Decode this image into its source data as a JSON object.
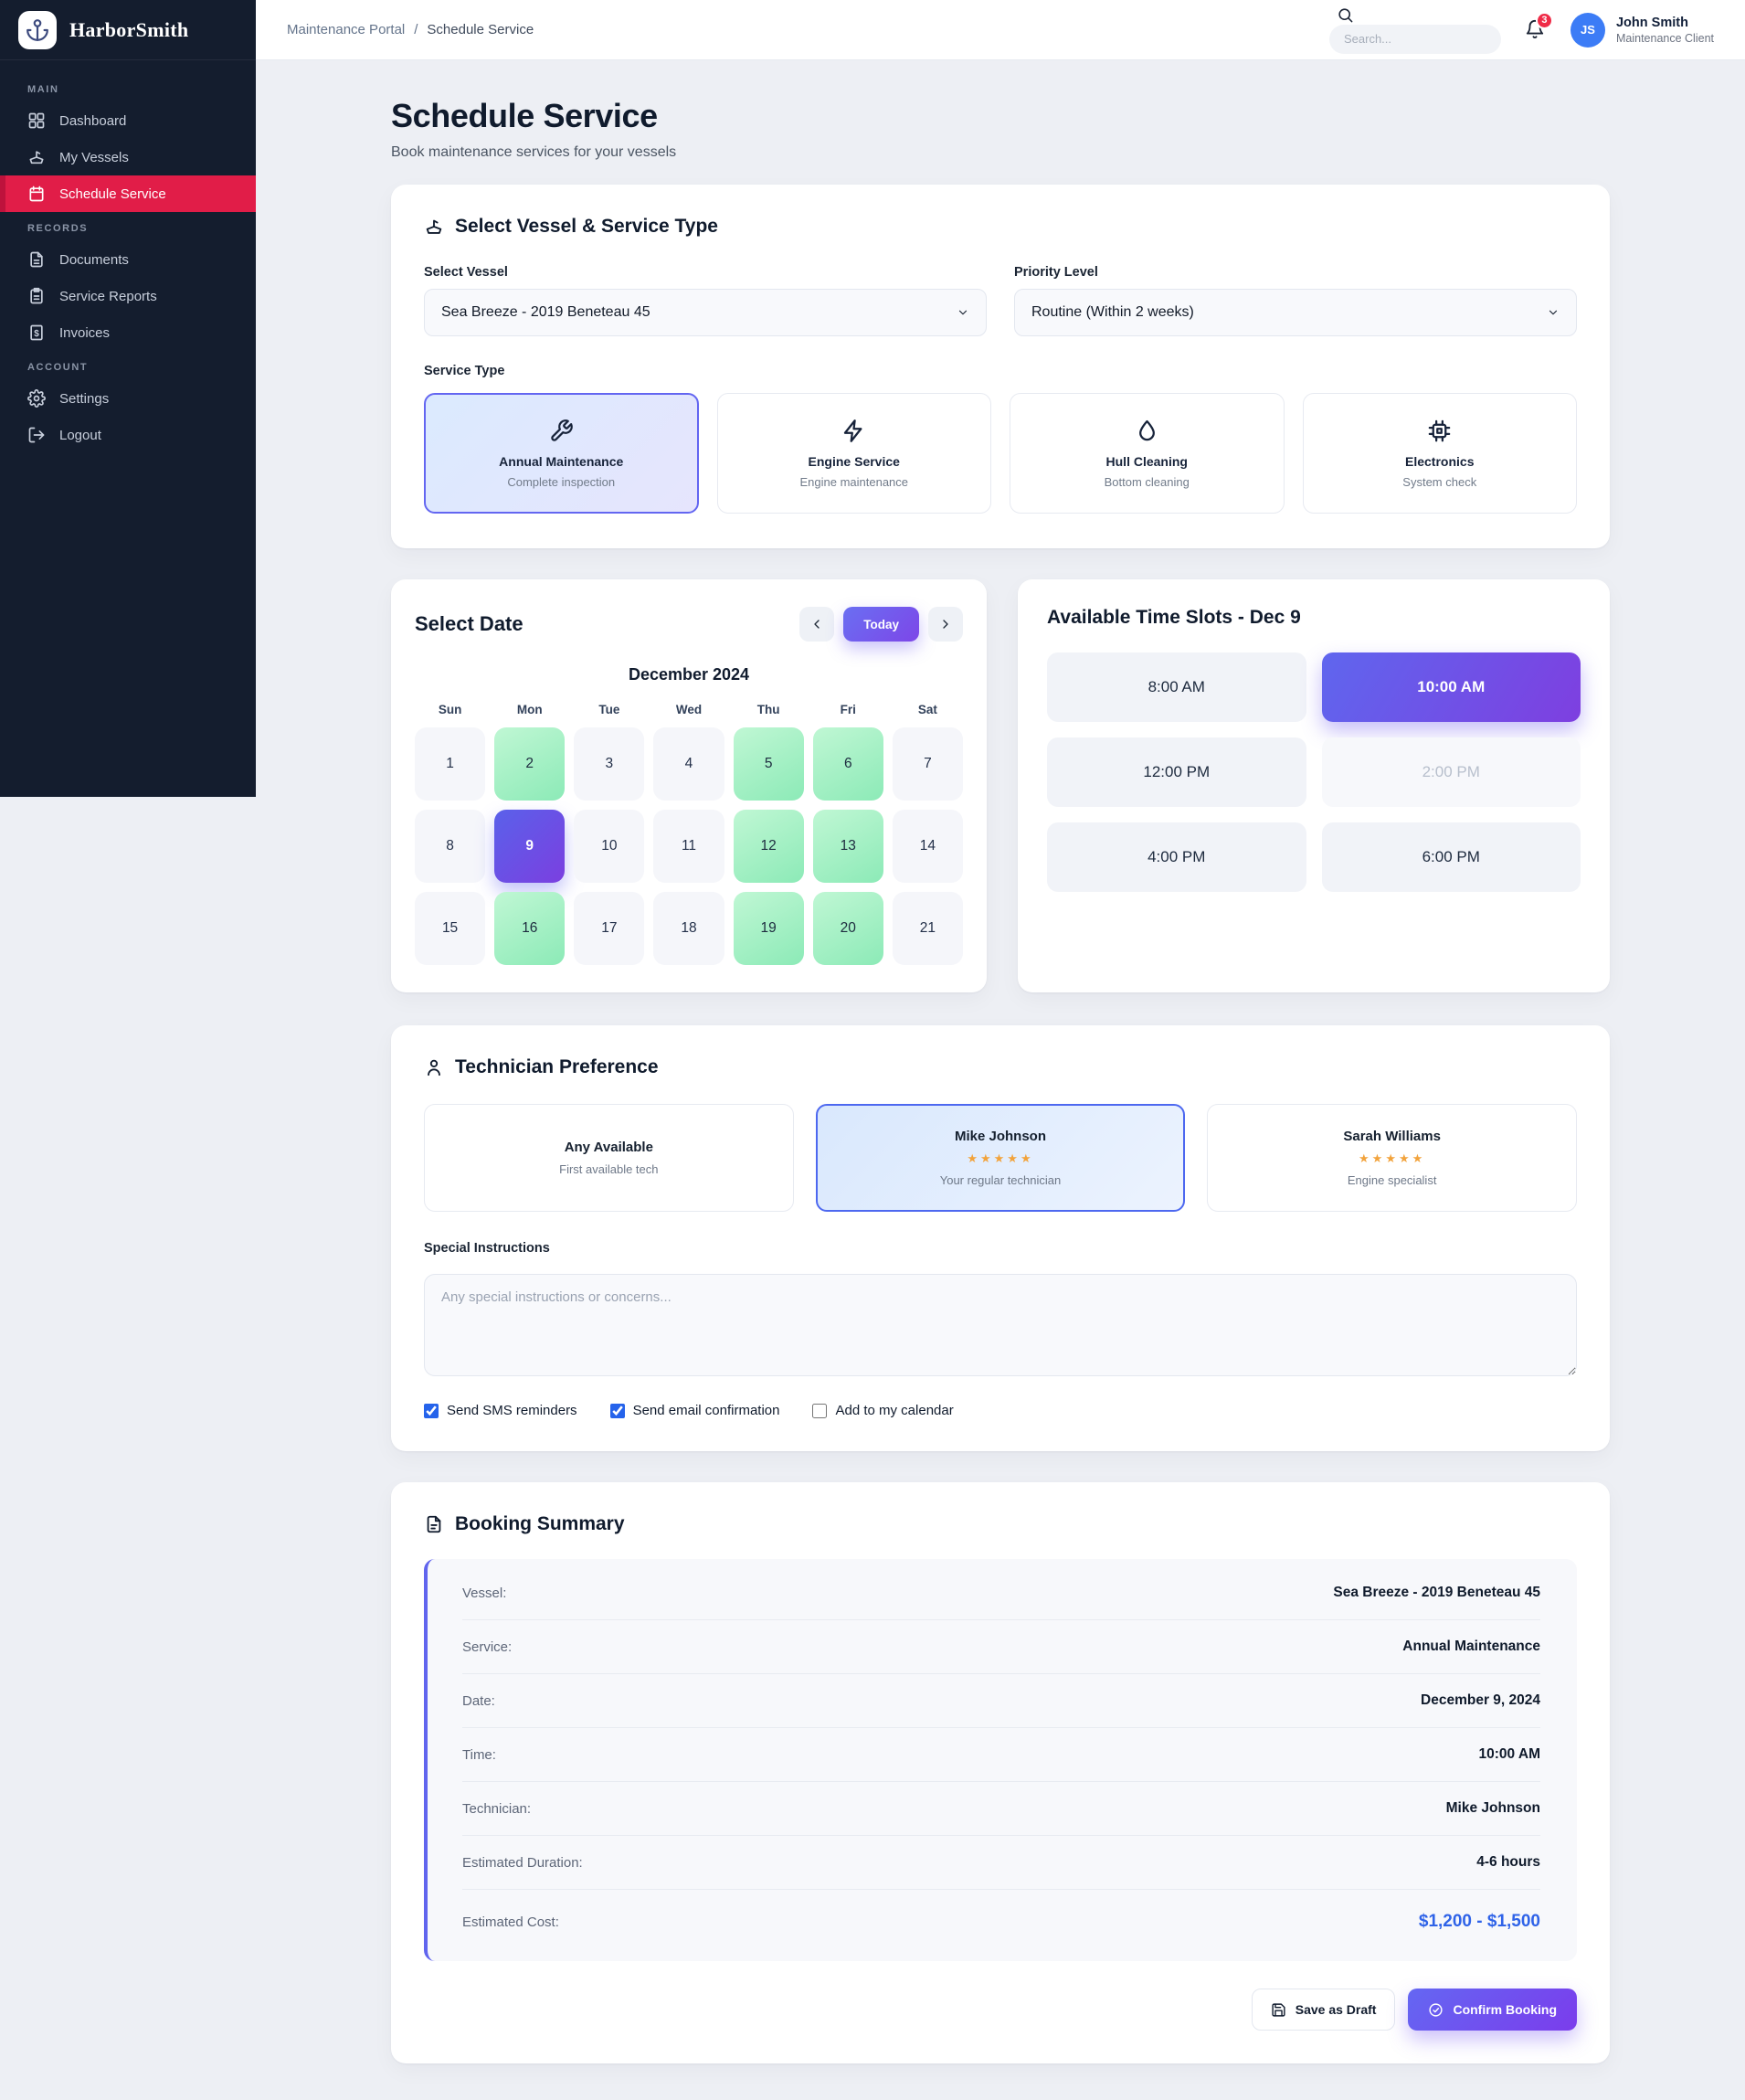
{
  "brand": {
    "name": "HarborSmith"
  },
  "sidebar": {
    "sections": [
      {
        "label": "MAIN",
        "items": [
          {
            "label": "Dashboard",
            "icon": "dashboard",
            "active": false
          },
          {
            "label": "My Vessels",
            "icon": "ship",
            "active": false
          },
          {
            "label": "Schedule Service",
            "icon": "calendar",
            "active": true
          }
        ]
      },
      {
        "label": "RECORDS",
        "items": [
          {
            "label": "Documents",
            "icon": "file",
            "active": false
          },
          {
            "label": "Service Reports",
            "icon": "clipboard",
            "active": false
          },
          {
            "label": "Invoices",
            "icon": "invoice",
            "active": false
          }
        ]
      },
      {
        "label": "ACCOUNT",
        "items": [
          {
            "label": "Settings",
            "icon": "gear",
            "active": false
          },
          {
            "label": "Logout",
            "icon": "logout",
            "active": false
          }
        ]
      }
    ]
  },
  "header": {
    "breadcrumb": [
      "Maintenance Portal",
      "Schedule Service"
    ],
    "sep": "/",
    "search_placeholder": "Search...",
    "notification_count": "3",
    "user": {
      "initials": "JS",
      "name": "John Smith",
      "role": "Maintenance Client"
    }
  },
  "page": {
    "title": "Schedule Service",
    "subtitle": "Book maintenance services for your vessels"
  },
  "vessel_section": {
    "heading": "Select Vessel & Service Type",
    "vessel_label": "Select Vessel",
    "vessel_value": "Sea Breeze - 2019 Beneteau 45",
    "priority_label": "Priority Level",
    "priority_value": "Routine (Within 2 weeks)",
    "service_type_label": "Service Type",
    "services": [
      {
        "name": "Annual Maintenance",
        "desc": "Complete inspection",
        "icon": "wrench",
        "selected": true
      },
      {
        "name": "Engine Service",
        "desc": "Engine maintenance",
        "icon": "bolt",
        "selected": false
      },
      {
        "name": "Hull Cleaning",
        "desc": "Bottom cleaning",
        "icon": "droplet",
        "selected": false
      },
      {
        "name": "Electronics",
        "desc": "System check",
        "icon": "cpu",
        "selected": false
      }
    ]
  },
  "date_section": {
    "heading": "Select Date",
    "today_label": "Today",
    "month": "December 2024",
    "weekdays": [
      "Sun",
      "Mon",
      "Tue",
      "Wed",
      "Thu",
      "Fri",
      "Sat"
    ],
    "days": [
      {
        "d": "1",
        "state": "default"
      },
      {
        "d": "2",
        "state": "available"
      },
      {
        "d": "3",
        "state": "default"
      },
      {
        "d": "4",
        "state": "default"
      },
      {
        "d": "5",
        "state": "available"
      },
      {
        "d": "6",
        "state": "available"
      },
      {
        "d": "7",
        "state": "default"
      },
      {
        "d": "8",
        "state": "default"
      },
      {
        "d": "9",
        "state": "selected"
      },
      {
        "d": "10",
        "state": "default"
      },
      {
        "d": "11",
        "state": "default"
      },
      {
        "d": "12",
        "state": "available"
      },
      {
        "d": "13",
        "state": "available"
      },
      {
        "d": "14",
        "state": "default"
      },
      {
        "d": "15",
        "state": "default"
      },
      {
        "d": "16",
        "state": "available"
      },
      {
        "d": "17",
        "state": "default"
      },
      {
        "d": "18",
        "state": "default"
      },
      {
        "d": "19",
        "state": "available"
      },
      {
        "d": "20",
        "state": "available"
      },
      {
        "d": "21",
        "state": "default"
      }
    ]
  },
  "slots_section": {
    "heading": "Available Time Slots - Dec 9",
    "slots": [
      {
        "label": "8:00 AM",
        "state": "default"
      },
      {
        "label": "10:00 AM",
        "state": "selected"
      },
      {
        "label": "12:00 PM",
        "state": "default"
      },
      {
        "label": "2:00 PM",
        "state": "disabled"
      },
      {
        "label": "4:00 PM",
        "state": "default"
      },
      {
        "label": "6:00 PM",
        "state": "default"
      }
    ]
  },
  "technician_section": {
    "heading": "Technician Preference",
    "options": [
      {
        "name": "Any Available",
        "stars": "",
        "desc": "First available tech",
        "selected": false
      },
      {
        "name": "Mike Johnson",
        "stars": "★★★★★",
        "desc": "Your regular technician",
        "selected": true
      },
      {
        "name": "Sarah Williams",
        "stars": "★★★★★",
        "desc": "Engine specialist",
        "selected": false
      }
    ],
    "instructions_label": "Special Instructions",
    "instructions_placeholder": "Any special instructions or concerns...",
    "checkboxes": [
      {
        "label": "Send SMS reminders",
        "checked": true
      },
      {
        "label": "Send email confirmation",
        "checked": true
      },
      {
        "label": "Add to my calendar",
        "checked": false
      }
    ]
  },
  "summary_section": {
    "heading": "Booking Summary",
    "rows": [
      {
        "label": "Vessel:",
        "value": "Sea Breeze - 2019 Beneteau 45",
        "highlight": false
      },
      {
        "label": "Service:",
        "value": "Annual Maintenance",
        "highlight": false
      },
      {
        "label": "Date:",
        "value": "December 9, 2024",
        "highlight": false
      },
      {
        "label": "Time:",
        "value": "10:00 AM",
        "highlight": false
      },
      {
        "label": "Technician:",
        "value": "Mike Johnson",
        "highlight": false
      },
      {
        "label": "Estimated Duration:",
        "value": "4-6 hours",
        "highlight": false
      },
      {
        "label": "Estimated Cost:",
        "value": "$1,200 - $1,500",
        "highlight": true
      }
    ],
    "save_draft_label": "Save as Draft",
    "confirm_label": "Confirm Booking"
  },
  "colors": {
    "sidebar_bg": "#141d2e",
    "active_red": "#e11d48",
    "accent_purple": "#6366f1",
    "available_green": "#8ceab7",
    "cost_blue": "#2f63e8",
    "avatar_blue": "#3c7cf6",
    "star_amber": "#f2a33c"
  }
}
